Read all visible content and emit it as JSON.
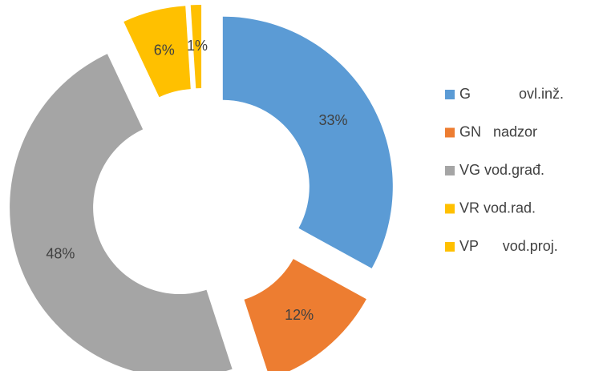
{
  "chart_data": {
    "type": "donut",
    "categories": [
      "G            ovl.inž.",
      "GN   nadzor",
      "VG vod.građ.",
      "VR vod.rad.",
      "VP      vod.proj."
    ],
    "values": [
      33,
      12,
      48,
      6,
      1
    ],
    "value_labels": [
      "33%",
      "12%",
      "48%",
      "6%",
      "1%"
    ],
    "colors": [
      "#5b9bd5",
      "#ed7d31",
      "#a5a5a5",
      "#ffc000",
      "#ffc000"
    ],
    "legend": "right"
  }
}
